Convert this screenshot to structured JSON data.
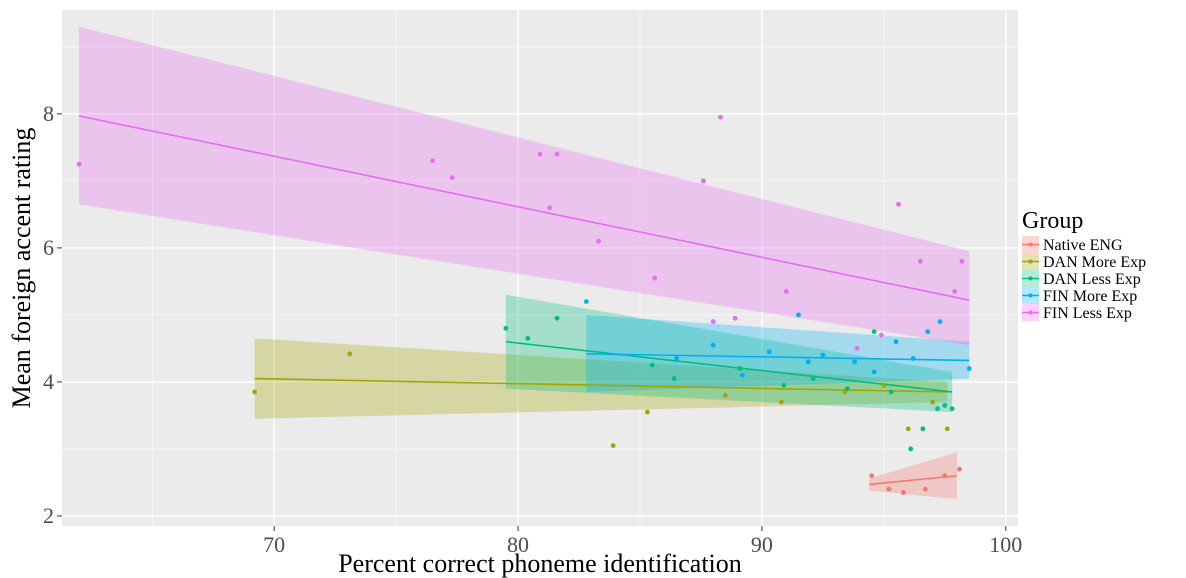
{
  "chart_data": {
    "type": "scatter",
    "xlabel": "Percent correct phoneme identification",
    "ylabel": "Mean foreign accent rating",
    "xlim": [
      61.3,
      100.5
    ],
    "ylim": [
      1.85,
      9.55
    ],
    "x_ticks": [
      70,
      80,
      90,
      100
    ],
    "y_ticks": [
      2,
      4,
      6,
      8
    ],
    "grid": true,
    "legend": {
      "title": "Group",
      "position": "right"
    },
    "series": [
      {
        "name": "Native ENG",
        "color": "#F8766D",
        "points": [
          [
            94.5,
            2.6
          ],
          [
            95.2,
            2.4
          ],
          [
            95.8,
            2.35
          ],
          [
            96.7,
            2.4
          ],
          [
            97.5,
            2.6
          ],
          [
            98.1,
            2.7
          ]
        ],
        "fit": {
          "x_range": [
            94.4,
            98.0
          ],
          "y_start": 2.47,
          "y_end": 2.6,
          "band": [
            [
              2.38,
              2.56
            ],
            [
              2.25,
              2.95
            ]
          ]
        }
      },
      {
        "name": "DAN More Exp",
        "color": "#A3A500",
        "points": [
          [
            69.2,
            3.85
          ],
          [
            73.1,
            4.42
          ],
          [
            83.9,
            3.05
          ],
          [
            85.3,
            3.55
          ],
          [
            88.5,
            3.8
          ],
          [
            90.8,
            3.7
          ],
          [
            93.4,
            3.85
          ],
          [
            95.0,
            3.95
          ],
          [
            96.0,
            3.3
          ],
          [
            97.0,
            3.7
          ],
          [
            97.6,
            3.3
          ]
        ],
        "fit": {
          "x_range": [
            69.2,
            97.6
          ],
          "y_start": 4.05,
          "y_end": 3.85,
          "band": [
            [
              3.45,
              4.65
            ],
            [
              3.7,
              4.0
            ]
          ]
        }
      },
      {
        "name": "DAN Less Exp",
        "color": "#00BF7D",
        "points": [
          [
            79.5,
            4.8
          ],
          [
            80.4,
            4.65
          ],
          [
            81.6,
            4.95
          ],
          [
            85.5,
            4.25
          ],
          [
            86.4,
            4.05
          ],
          [
            89.1,
            4.2
          ],
          [
            90.9,
            3.95
          ],
          [
            92.1,
            4.05
          ],
          [
            93.5,
            3.9
          ],
          [
            94.6,
            4.75
          ],
          [
            95.3,
            3.85
          ],
          [
            96.1,
            3.0
          ],
          [
            96.6,
            3.3
          ],
          [
            97.2,
            3.6
          ],
          [
            97.5,
            3.65
          ],
          [
            97.8,
            3.6
          ]
        ],
        "fit": {
          "x_range": [
            79.5,
            97.8
          ],
          "y_start": 4.6,
          "y_end": 3.85,
          "band": [
            [
              3.9,
              5.3
            ],
            [
              3.55,
              4.15
            ]
          ]
        }
      },
      {
        "name": "FIN More Exp",
        "color": "#00B0F6",
        "points": [
          [
            82.8,
            5.2
          ],
          [
            86.5,
            4.35
          ],
          [
            88.0,
            4.55
          ],
          [
            89.2,
            4.1
          ],
          [
            90.3,
            4.45
          ],
          [
            91.5,
            5.0
          ],
          [
            91.9,
            4.3
          ],
          [
            92.5,
            4.4
          ],
          [
            93.8,
            4.3
          ],
          [
            94.6,
            4.15
          ],
          [
            95.5,
            4.6
          ],
          [
            96.2,
            4.35
          ],
          [
            96.8,
            4.75
          ],
          [
            97.3,
            4.9
          ],
          [
            98.5,
            4.2
          ]
        ],
        "fit": {
          "x_range": [
            82.8,
            98.5
          ],
          "y_start": 4.42,
          "y_end": 4.32,
          "band": [
            [
              3.85,
              5.0
            ],
            [
              4.05,
              4.6
            ]
          ]
        }
      },
      {
        "name": "FIN Less Exp",
        "color": "#E76BF3",
        "points": [
          [
            62.0,
            7.25
          ],
          [
            76.5,
            7.3
          ],
          [
            77.3,
            7.05
          ],
          [
            80.9,
            7.4
          ],
          [
            81.3,
            6.6
          ],
          [
            81.6,
            7.4
          ],
          [
            83.3,
            6.1
          ],
          [
            85.6,
            5.55
          ],
          [
            87.6,
            7.0
          ],
          [
            88.3,
            7.95
          ],
          [
            88.0,
            4.9
          ],
          [
            88.9,
            4.95
          ],
          [
            91.0,
            5.35
          ],
          [
            93.9,
            4.5
          ],
          [
            94.9,
            4.7
          ],
          [
            95.6,
            6.65
          ],
          [
            96.5,
            5.8
          ],
          [
            97.9,
            5.35
          ],
          [
            98.2,
            5.8
          ]
        ],
        "fit": {
          "x_range": [
            62.0,
            98.5
          ],
          "y_start": 7.97,
          "y_end": 5.22,
          "band": [
            [
              6.65,
              9.3
            ],
            [
              4.55,
              5.95
            ]
          ]
        }
      }
    ]
  }
}
